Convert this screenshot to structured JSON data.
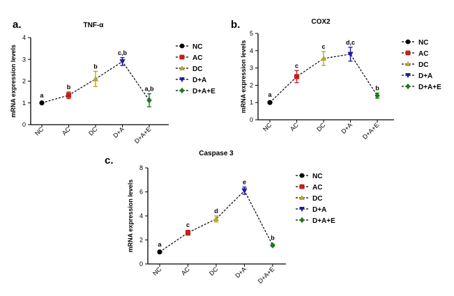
{
  "chart_data": [
    {
      "type": "line",
      "panel_label": "a.",
      "title": "TNF-α",
      "ylabel": "mRNA expression levels",
      "xlabel": "",
      "ylim": [
        0,
        4
      ],
      "yticks": [
        "0",
        "1",
        "2",
        "3",
        "4"
      ],
      "categories": [
        "NC",
        "AC",
        "DC",
        "D+A",
        "D+A+E"
      ],
      "values": [
        1.0,
        1.35,
        2.1,
        2.9,
        1.12
      ],
      "errors": [
        0.04,
        0.15,
        0.35,
        0.18,
        0.3
      ],
      "significance": [
        "a",
        "b",
        "b",
        "c,b",
        "a,b"
      ],
      "legend": [
        "NC",
        "AC",
        "DC",
        "D+A",
        "D+A+E"
      ],
      "legend_position": "right"
    },
    {
      "type": "line",
      "panel_label": "b.",
      "title": "COX2",
      "ylabel": "mRNA expression levels",
      "xlabel": "",
      "ylim": [
        0,
        5
      ],
      "yticks": [
        "0",
        "1",
        "2",
        "3",
        "4",
        "5"
      ],
      "categories": [
        "NC",
        "AC",
        "DC",
        "D+A",
        "D+A+E"
      ],
      "values": [
        1.0,
        2.5,
        3.55,
        3.8,
        1.4
      ],
      "errors": [
        0.04,
        0.35,
        0.4,
        0.4,
        0.15
      ],
      "significance": [
        "a",
        "c",
        "c",
        "d,c",
        "b"
      ],
      "legend": [
        "NC",
        "AC",
        "DC",
        "D+A",
        "D+A+E"
      ],
      "legend_position": "right"
    },
    {
      "type": "line",
      "panel_label": "c.",
      "title": "Caspase 3",
      "ylabel": "mRNA expression levels",
      "xlabel": "",
      "ylim": [
        0,
        8
      ],
      "yticks": [
        "0",
        "2",
        "4",
        "6",
        "8"
      ],
      "categories": [
        "NC",
        "AC",
        "DC",
        "D+A",
        "D+A+E"
      ],
      "values": [
        1.0,
        2.6,
        3.75,
        6.1,
        1.55
      ],
      "errors": [
        0.05,
        0.2,
        0.25,
        0.3,
        0.08
      ],
      "significance": [
        "a",
        "c",
        "d",
        "e",
        "b"
      ],
      "legend": [
        "NC",
        "AC",
        "DC",
        "D+A",
        "D+A+E"
      ],
      "legend_position": "right"
    }
  ],
  "series_style": {
    "colors": [
      "#000000",
      "#c0201c",
      "#b4a82a",
      "#1a1aa8",
      "#1f7a1f"
    ],
    "markers": [
      "circle",
      "square",
      "triangle-up",
      "triangle-down",
      "diamond"
    ]
  }
}
